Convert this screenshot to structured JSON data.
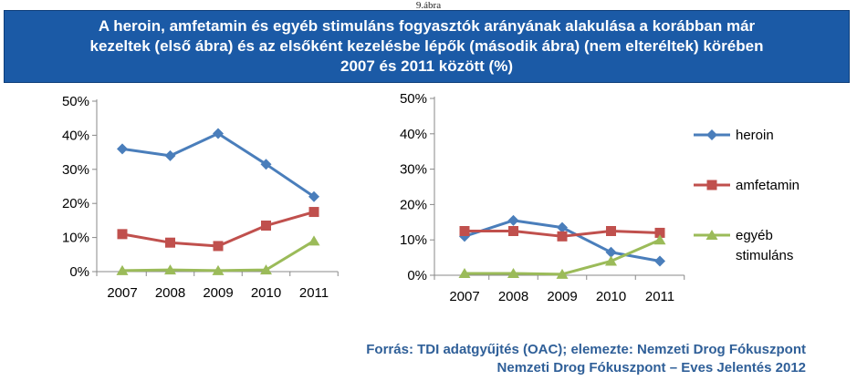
{
  "page": {
    "top_caption": "9.ábra",
    "title_lines": [
      "A heroin, amfetamin és egyéb stimuláns fogyasztók arányának alakulása a korábban már",
      "kezeltek (első ábra) és az elsőként kezelésbe lépők (második ábra) (nem elteréltek) körében",
      "2007 és 2011 között (%)"
    ],
    "source_lines": [
      "Forrás: TDI adatgyűjtés (OAC); elemezte: Nemzeti Drog Fókuszpont",
      "Nemzeti Drog Fókuszpont – Eves Jelentés 2012"
    ]
  },
  "colors": {
    "heroin": "#4a7ebb",
    "amfetamin": "#c0504d",
    "egyeb": "#9bbb59",
    "title_bg": "#1b5aa6",
    "source_text": "#2f5f98"
  },
  "legend": [
    {
      "label_lines": [
        "heroin"
      ],
      "marker": "diamond",
      "color_key": "heroin"
    },
    {
      "label_lines": [
        "amfetamin"
      ],
      "marker": "square",
      "color_key": "amfetamin"
    },
    {
      "label_lines": [
        "egyéb",
        "stimuláns"
      ],
      "marker": "triangle",
      "color_key": "egyeb"
    }
  ],
  "chart_data": [
    {
      "type": "line",
      "categories": [
        "2007",
        "2008",
        "2009",
        "2010",
        "2011"
      ],
      "ylim": [
        0,
        50
      ],
      "yticks": [
        "0%",
        "10%",
        "20%",
        "30%",
        "40%",
        "50%"
      ],
      "grid": false,
      "series": [
        {
          "name": "heroin",
          "marker": "diamond",
          "values": [
            36,
            34,
            40.5,
            31.5,
            22
          ]
        },
        {
          "name": "amfetamin",
          "marker": "square",
          "values": [
            11,
            8.5,
            7.5,
            13.5,
            17.5
          ]
        },
        {
          "name": "egyéb stimuláns",
          "marker": "triangle",
          "values": [
            0.3,
            0.5,
            0.3,
            0.5,
            9
          ]
        }
      ]
    },
    {
      "type": "line",
      "categories": [
        "2007",
        "2008",
        "2009",
        "2010",
        "2011"
      ],
      "ylim": [
        0,
        50
      ],
      "yticks": [
        "0%",
        "10%",
        "20%",
        "30%",
        "40%",
        "50%"
      ],
      "grid": false,
      "legend_position": "right",
      "series": [
        {
          "name": "heroin",
          "marker": "diamond",
          "values": [
            11,
            15.5,
            13.5,
            6.5,
            4
          ]
        },
        {
          "name": "amfetamin",
          "marker": "square",
          "values": [
            12.5,
            12.5,
            11,
            12.5,
            12
          ]
        },
        {
          "name": "egyéb stimuláns",
          "marker": "triangle",
          "values": [
            0.5,
            0.5,
            0.3,
            4,
            10
          ]
        }
      ]
    }
  ]
}
